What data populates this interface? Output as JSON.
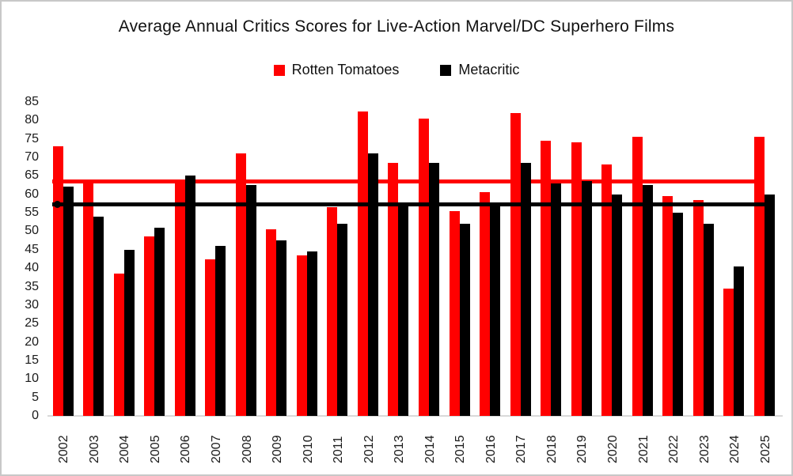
{
  "chart_data": {
    "type": "bar",
    "title": "Average Annual Critics Scores for Live-Action Marvel/DC Superhero Films",
    "categories": [
      "2002",
      "2003",
      "2004",
      "2005",
      "2006",
      "2007",
      "2008",
      "2009",
      "2010",
      "2011",
      "2012",
      "2013",
      "2014",
      "2015",
      "2016",
      "2017",
      "2018",
      "2019",
      "2020",
      "2021",
      "2022",
      "2023",
      "2024",
      "2025"
    ],
    "series": [
      {
        "name": "Rotten Tomatoes",
        "color": "#FF0000",
        "values": [
          73,
          63.5,
          38.5,
          48.5,
          63.5,
          42.5,
          71,
          50.5,
          43.5,
          56.5,
          82.5,
          68.5,
          80.5,
          55.5,
          60.5,
          82,
          74.5,
          74,
          68,
          75.5,
          59.5,
          58.5,
          34.5,
          75.5
        ]
      },
      {
        "name": "Metacritic",
        "color": "#000000",
        "values": [
          62,
          54,
          45,
          51,
          65,
          46,
          62.5,
          47.5,
          44.5,
          52,
          71,
          57,
          68.5,
          52,
          57,
          68.5,
          63,
          63.5,
          60,
          62.5,
          55,
          52,
          40.5,
          60
        ]
      }
    ],
    "average_lines": [
      {
        "name": "Rotten Tomatoes average",
        "value": 63.4,
        "color": "#FF0000",
        "marker_end": "right"
      },
      {
        "name": "Metacritic average",
        "value": 57.2,
        "color": "#000000",
        "marker_end": "left"
      }
    ],
    "ylim": [
      0,
      85
    ],
    "ytick_step": 5,
    "grid": false,
    "legend_position": "top-center",
    "axis_line_color": "#D9D9D9",
    "xlabel": "",
    "ylabel": ""
  }
}
